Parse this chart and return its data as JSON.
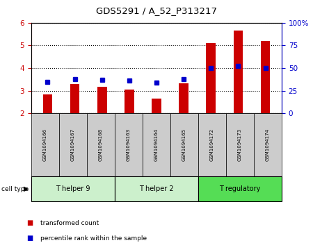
{
  "title": "GDS5291 / A_52_P313217",
  "samples": [
    "GSM1094166",
    "GSM1094167",
    "GSM1094168",
    "GSM1094163",
    "GSM1094164",
    "GSM1094165",
    "GSM1094172",
    "GSM1094173",
    "GSM1094174"
  ],
  "red_values": [
    2.85,
    3.3,
    3.17,
    3.05,
    2.65,
    3.33,
    5.1,
    5.65,
    5.18
  ],
  "blue_values": [
    3.38,
    3.5,
    3.47,
    3.45,
    3.35,
    3.5,
    4.0,
    4.08,
    4.0
  ],
  "ylim": [
    2.0,
    6.0
  ],
  "y2lim": [
    0,
    100
  ],
  "yticks": [
    2,
    3,
    4,
    5,
    6
  ],
  "y2ticks": [
    0,
    25,
    50,
    75,
    100
  ],
  "y2tick_labels": [
    "0",
    "25",
    "50",
    "75",
    "100%"
  ],
  "cell_groups": [
    {
      "label": "T helper 9",
      "indices": [
        0,
        1,
        2
      ],
      "color": "#ccf0cc"
    },
    {
      "label": "T helper 2",
      "indices": [
        3,
        4,
        5
      ],
      "color": "#ccf0cc"
    },
    {
      "label": "T regulatory",
      "indices": [
        6,
        7,
        8
      ],
      "color": "#55dd55"
    }
  ],
  "bar_color": "#cc0000",
  "dot_color": "#0000cc",
  "bar_bottom": 2.0,
  "bar_width": 0.35,
  "tick_label_box_color": "#cccccc",
  "legend_items": [
    "transformed count",
    "percentile rank within the sample"
  ],
  "cell_type_label": "cell type"
}
